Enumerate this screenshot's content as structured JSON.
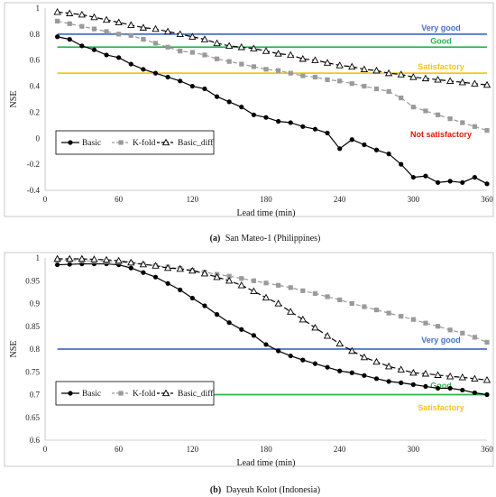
{
  "chart_data": [
    {
      "type": "line",
      "caption_letter": "(a)",
      "caption_text": "San Mateo-1 (Philippines)",
      "xlabel": "Lead time (min)",
      "ylabel": "NSE",
      "xlim": [
        0,
        360
      ],
      "ylim": [
        -0.4,
        1
      ],
      "xticks": [
        0,
        60,
        120,
        180,
        240,
        300,
        360
      ],
      "yticks": [
        -0.4,
        -0.2,
        0,
        0.2,
        0.4,
        0.6,
        0.8,
        1
      ],
      "reference_lines": [
        {
          "label": "Very good",
          "y": 0.8,
          "color": "#4472C4"
        },
        {
          "label": "Good",
          "y": 0.7,
          "color": "#2EB24C"
        },
        {
          "label": "Satisfactory",
          "y": 0.5,
          "color": "#F5C518"
        }
      ],
      "extra_labels": [
        {
          "label": "Not satisfactory",
          "color": "#E3160B"
        }
      ],
      "x": [
        10,
        20,
        30,
        40,
        50,
        60,
        70,
        80,
        90,
        100,
        110,
        120,
        130,
        140,
        150,
        160,
        170,
        180,
        190,
        200,
        210,
        220,
        230,
        240,
        250,
        260,
        270,
        280,
        290,
        300,
        310,
        320,
        330,
        340,
        350,
        360
      ],
      "series": [
        {
          "name": "Basic",
          "marker": "circle",
          "color": "#000000",
          "dash": "",
          "values": [
            0.78,
            0.76,
            0.71,
            0.68,
            0.64,
            0.62,
            0.57,
            0.53,
            0.5,
            0.47,
            0.44,
            0.4,
            0.38,
            0.32,
            0.28,
            0.24,
            0.18,
            0.16,
            0.13,
            0.12,
            0.09,
            0.07,
            0.04,
            -0.08,
            -0.01,
            -0.05,
            -0.09,
            -0.12,
            -0.2,
            -0.3,
            -0.29,
            -0.34,
            -0.33,
            -0.34,
            -0.3,
            -0.35
          ]
        },
        {
          "name": "K-fold",
          "marker": "square",
          "color": "#9a9a9a",
          "dash": "5,3",
          "values": [
            0.9,
            0.88,
            0.86,
            0.84,
            0.82,
            0.8,
            0.79,
            0.76,
            0.73,
            0.7,
            0.67,
            0.66,
            0.64,
            0.61,
            0.59,
            0.57,
            0.55,
            0.53,
            0.52,
            0.5,
            0.48,
            0.47,
            0.45,
            0.44,
            0.42,
            0.4,
            0.38,
            0.36,
            0.31,
            0.24,
            0.21,
            0.18,
            0.15,
            0.12,
            0.09,
            0.06
          ]
        },
        {
          "name": "Basic_diff",
          "marker": "triangle",
          "color": "#000000",
          "dash": "6,3",
          "values": [
            0.97,
            0.96,
            0.95,
            0.93,
            0.91,
            0.89,
            0.87,
            0.85,
            0.84,
            0.82,
            0.8,
            0.78,
            0.76,
            0.73,
            0.71,
            0.7,
            0.69,
            0.67,
            0.65,
            0.64,
            0.61,
            0.6,
            0.58,
            0.56,
            0.55,
            0.53,
            0.52,
            0.5,
            0.49,
            0.47,
            0.46,
            0.45,
            0.44,
            0.43,
            0.42,
            0.41
          ]
        }
      ]
    },
    {
      "type": "line",
      "caption_letter": "(b)",
      "caption_text": "Dayeuh Kolot (Indonesia)",
      "xlabel": "Lead time (min)",
      "ylabel": "NSE",
      "xlim": [
        0,
        360
      ],
      "ylim": [
        0.6,
        1
      ],
      "xticks": [
        0,
        60,
        120,
        180,
        240,
        300,
        360
      ],
      "yticks": [
        0.6,
        0.65,
        0.7,
        0.75,
        0.8,
        0.85,
        0.9,
        0.95,
        1
      ],
      "reference_lines": [
        {
          "label": "Very good",
          "y": 0.8,
          "color": "#4472C4"
        },
        {
          "label": "Good",
          "y": 0.7,
          "color": "#2EB24C"
        }
      ],
      "extra_labels": [
        {
          "label": "Satisfactory",
          "color": "#F5C518"
        }
      ],
      "x": [
        10,
        20,
        30,
        40,
        50,
        60,
        70,
        80,
        90,
        100,
        110,
        120,
        130,
        140,
        150,
        160,
        170,
        180,
        190,
        200,
        210,
        220,
        230,
        240,
        250,
        260,
        270,
        280,
        290,
        300,
        310,
        320,
        330,
        340,
        350,
        360
      ],
      "series": [
        {
          "name": "Basic",
          "marker": "circle",
          "color": "#000000",
          "dash": "",
          "values": [
            0.985,
            0.986,
            0.987,
            0.987,
            0.987,
            0.985,
            0.978,
            0.968,
            0.958,
            0.944,
            0.93,
            0.912,
            0.895,
            0.876,
            0.858,
            0.843,
            0.83,
            0.81,
            0.796,
            0.785,
            0.776,
            0.768,
            0.76,
            0.752,
            0.748,
            0.742,
            0.735,
            0.729,
            0.726,
            0.722,
            0.718,
            0.714,
            0.714,
            0.71,
            0.704,
            0.7
          ]
        },
        {
          "name": "K-fold",
          "marker": "square",
          "color": "#9a9a9a",
          "dash": "5,3",
          "values": [
            0.995,
            0.995,
            0.994,
            0.993,
            0.992,
            0.991,
            0.989,
            0.986,
            0.983,
            0.98,
            0.977,
            0.973,
            0.969,
            0.964,
            0.96,
            0.955,
            0.95,
            0.945,
            0.94,
            0.935,
            0.928,
            0.922,
            0.915,
            0.908,
            0.9,
            0.893,
            0.886,
            0.879,
            0.872,
            0.865,
            0.857,
            0.85,
            0.842,
            0.835,
            0.826,
            0.815
          ]
        },
        {
          "name": "Basic_diff",
          "marker": "triangle",
          "color": "#000000",
          "dash": "6,3",
          "values": [
            0.998,
            0.998,
            0.998,
            0.997,
            0.996,
            0.994,
            0.99,
            0.986,
            0.983,
            0.978,
            0.976,
            0.972,
            0.966,
            0.958,
            0.95,
            0.94,
            0.927,
            0.913,
            0.9,
            0.882,
            0.865,
            0.847,
            0.829,
            0.812,
            0.796,
            0.782,
            0.772,
            0.762,
            0.755,
            0.748,
            0.746,
            0.743,
            0.74,
            0.738,
            0.735,
            0.732
          ]
        }
      ]
    }
  ]
}
